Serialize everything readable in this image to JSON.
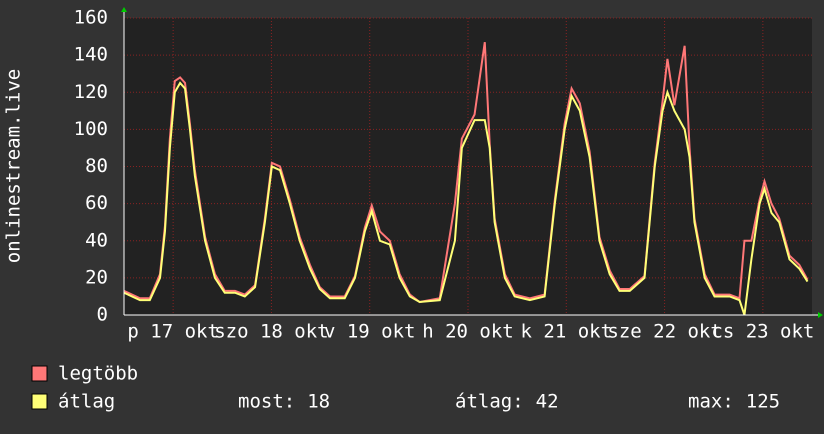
{
  "chart_data": {
    "type": "line",
    "ylabel": "onlinestream.live",
    "xlim": [
      0,
      168
    ],
    "ylim": [
      0,
      160
    ],
    "yticks": [
      0,
      20,
      40,
      60,
      80,
      100,
      120,
      140,
      160
    ],
    "xticks": [
      {
        "value": 12,
        "label": "p 17 okt"
      },
      {
        "value": 36,
        "label": "szo 18 okt"
      },
      {
        "value": 60,
        "label": "v 19 okt"
      },
      {
        "value": 84,
        "label": "h 20 okt"
      },
      {
        "value": 108,
        "label": "k 21 okt"
      },
      {
        "value": 132,
        "label": "sze 22 okt"
      },
      {
        "value": 156,
        "label": "cs 23 okt"
      }
    ],
    "grid": true,
    "x": [
      0,
      3.9,
      6.3,
      8.8,
      10,
      11.2,
      12.4,
      13.7,
      14.9,
      16.1,
      17.3,
      19.8,
      22.2,
      24.6,
      27.1,
      29.5,
      32,
      34.4,
      36.1,
      38.1,
      40.5,
      42.9,
      45.4,
      47.8,
      50.3,
      53.9,
      56.4,
      58.8,
      60.5,
      62.5,
      64.9,
      67.3,
      69.8,
      72.2,
      77.1,
      80.8,
      82.5,
      85.6,
      88.1,
      89.3,
      90.5,
      93,
      95.4,
      99.1,
      102.7,
      105.2,
      107.6,
      109.3,
      111.3,
      113.7,
      116.1,
      118.6,
      121,
      123.5,
      127.1,
      129.6,
      131.5,
      132.7,
      134.4,
      136.9,
      138.1,
      139.3,
      141.8,
      144.2,
      147.9,
      150.3,
      151.5,
      153.2,
      155.2,
      156.4,
      158.1,
      160,
      162.5,
      164.9,
      166.9
    ],
    "series": [
      {
        "name": "legtöbb",
        "color": "#ff7777",
        "values": [
          13,
          9,
          9,
          22,
          48,
          95,
          126,
          128,
          125,
          103,
          78,
          42,
          22,
          13,
          13,
          11,
          16,
          52,
          82,
          80,
          62,
          42,
          27,
          15,
          10,
          10,
          21,
          47,
          59,
          45,
          40,
          22,
          11,
          7,
          9,
          60,
          95,
          108,
          147,
          92,
          52,
          22,
          11,
          9,
          11,
          62,
          103,
          122,
          114,
          88,
          42,
          24,
          14,
          14,
          21,
          82,
          115,
          138,
          113,
          145,
          90,
          52,
          22,
          11,
          11,
          9,
          40,
          40,
          62,
          72,
          60,
          52,
          32,
          27,
          19
        ]
      },
      {
        "name": "átlag",
        "color": "#ffff77",
        "values": [
          12,
          8,
          8,
          20,
          45,
          90,
          120,
          125,
          122,
          100,
          75,
          40,
          20,
          12,
          12,
          10,
          15,
          50,
          80,
          78,
          60,
          40,
          25,
          14,
          9,
          9,
          20,
          45,
          56,
          40,
          38,
          20,
          10,
          7,
          8,
          40,
          90,
          105,
          105,
          90,
          50,
          20,
          10,
          8,
          10,
          60,
          100,
          118,
          110,
          85,
          40,
          22,
          13,
          13,
          20,
          80,
          110,
          120,
          110,
          100,
          85,
          50,
          20,
          10,
          10,
          8,
          0,
          30,
          60,
          68,
          55,
          50,
          30,
          25,
          18
        ]
      }
    ],
    "stats": [
      {
        "label": "most:",
        "value": 18
      },
      {
        "label": "átlag:",
        "value": 42
      },
      {
        "label": "max:",
        "value": 125
      }
    ]
  }
}
